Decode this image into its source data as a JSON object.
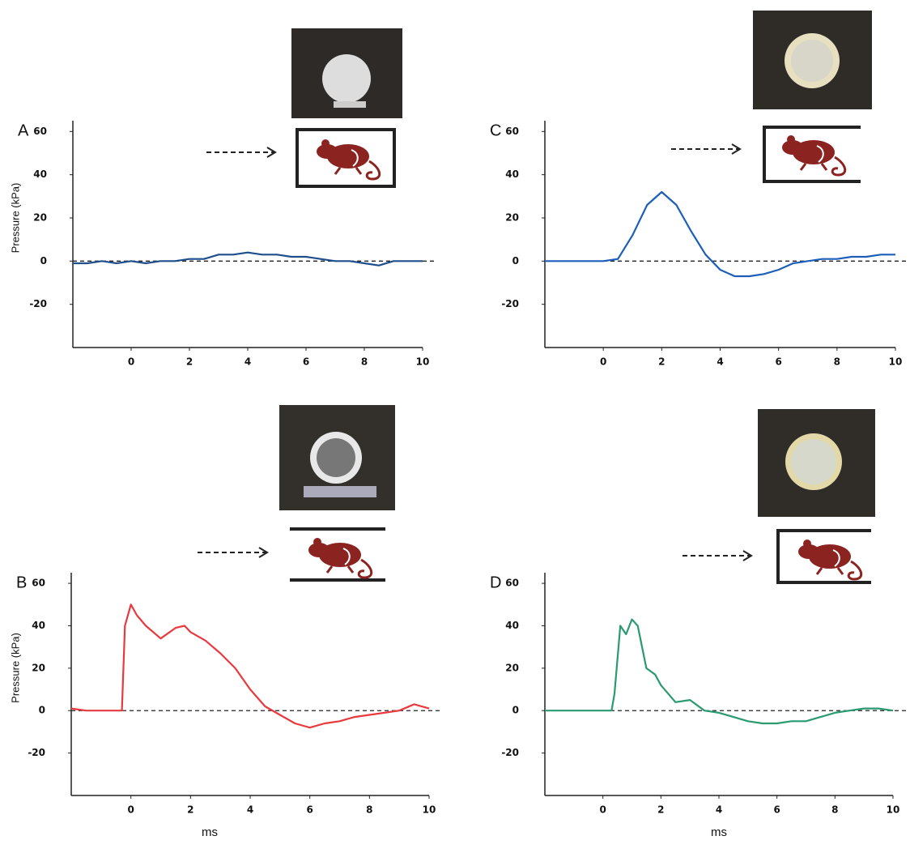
{
  "chart_data": [
    {
      "type": "line",
      "panel": "A",
      "y_label": "Pressure (kPa)",
      "xlim": [
        -2,
        10
      ],
      "ylim": [
        -40,
        65
      ],
      "xticks": [
        0,
        2,
        4,
        6,
        8,
        10
      ],
      "yticks": [
        -20,
        0,
        20,
        40,
        60
      ],
      "hline": 0,
      "color": "#1f4e8c",
      "x": [
        -2,
        -1.5,
        -1,
        -0.5,
        0,
        0.5,
        1,
        1.5,
        2,
        2.5,
        3,
        3.5,
        4,
        4.5,
        5,
        5.5,
        6,
        6.5,
        7,
        7.5,
        8,
        8.5,
        9,
        9.5,
        10
      ],
      "values": [
        -1,
        -1,
        0,
        -1,
        0,
        -1,
        0,
        0,
        1,
        1,
        3,
        3,
        4,
        3,
        3,
        2,
        2,
        1,
        0,
        0,
        -1,
        -2,
        0,
        0,
        0
      ]
    },
    {
      "type": "line",
      "panel": "B",
      "y_label": "Pressure (kPa)",
      "x_label": "ms",
      "xlim": [
        -2,
        10
      ],
      "ylim": [
        -40,
        65
      ],
      "xticks": [
        0,
        2,
        4,
        6,
        8,
        10
      ],
      "yticks": [
        -20,
        0,
        20,
        40,
        60
      ],
      "hline": 0,
      "color": "#e8393f",
      "x": [
        -2,
        -1.5,
        -1,
        -0.5,
        -0.3,
        -0.2,
        0,
        0.2,
        0.5,
        1,
        1.5,
        1.8,
        2,
        2.5,
        3,
        3.5,
        4,
        4.5,
        5,
        5.5,
        6,
        6.5,
        7,
        7.5,
        8,
        8.5,
        9,
        9.5,
        10
      ],
      "values": [
        1,
        0,
        0,
        0,
        0,
        40,
        50,
        45,
        40,
        34,
        39,
        40,
        37,
        33,
        27,
        20,
        10,
        2,
        -2,
        -6,
        -8,
        -6,
        -5,
        -3,
        -2,
        -1,
        0,
        3,
        1
      ]
    },
    {
      "type": "line",
      "panel": "C",
      "xlim": [
        -2,
        10
      ],
      "ylim": [
        -40,
        65
      ],
      "xticks": [
        0,
        2,
        4,
        6,
        8,
        10
      ],
      "yticks": [
        -20,
        0,
        20,
        40,
        60
      ],
      "hline": 0,
      "color": "#1d5fb8",
      "x": [
        -2,
        -1.5,
        -1,
        -0.5,
        0,
        0.5,
        1,
        1.5,
        2,
        2.5,
        3,
        3.5,
        4,
        4.5,
        5,
        5.5,
        6,
        6.5,
        7,
        7.5,
        8,
        8.5,
        9,
        9.5,
        10
      ],
      "values": [
        0,
        0,
        0,
        0,
        0,
        1,
        12,
        26,
        32,
        26,
        14,
        3,
        -4,
        -7,
        -7,
        -6,
        -4,
        -1,
        0,
        1,
        1,
        2,
        2,
        3,
        3
      ]
    },
    {
      "type": "line",
      "panel": "D",
      "x_label": "ms",
      "xlim": [
        -2,
        10
      ],
      "ylim": [
        -40,
        65
      ],
      "xticks": [
        0,
        2,
        4,
        6,
        8,
        10
      ],
      "yticks": [
        -20,
        0,
        20,
        40,
        60
      ],
      "hline": 0,
      "color": "#2a9a70",
      "x": [
        -2,
        -1,
        0,
        0.3,
        0.4,
        0.6,
        0.8,
        1,
        1.2,
        1.5,
        1.8,
        2,
        2.5,
        3,
        3.5,
        4,
        4.5,
        5,
        5.5,
        6,
        6.5,
        7,
        7.5,
        8,
        8.5,
        9,
        9.5,
        10
      ],
      "values": [
        0,
        0,
        0,
        0,
        8,
        40,
        36,
        43,
        40,
        20,
        17,
        12,
        4,
        5,
        0,
        -1,
        -3,
        -5,
        -6,
        -6,
        -5,
        -5,
        -3,
        -1,
        0,
        1,
        1,
        0
      ]
    }
  ]
}
